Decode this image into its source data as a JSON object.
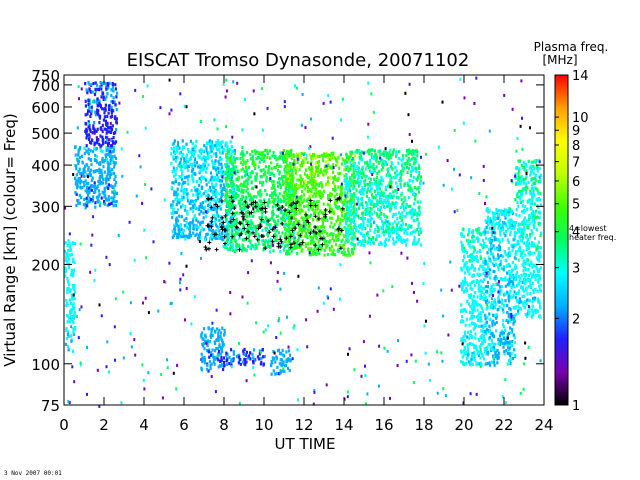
{
  "chart_data": {
    "type": "scatter",
    "title": "EISCAT Tromso Dynasonde,  20071102",
    "xlabel": "UT TIME",
    "ylabel": "Virtual Range [km]   (colour= Freq)",
    "xlim": [
      0,
      24
    ],
    "ylim": [
      75,
      750
    ],
    "y_scale": "log",
    "x_ticks": [
      0,
      2,
      4,
      6,
      8,
      10,
      12,
      14,
      16,
      18,
      20,
      22,
      24
    ],
    "y_ticks": [
      75,
      100,
      200,
      300,
      400,
      500,
      600,
      700,
      750
    ],
    "y_tick_labels": [
      "75",
      "100",
      "200",
      "300",
      "400",
      "500",
      "600",
      "700",
      "750"
    ],
    "grid": false,
    "colorbar": {
      "title": "Plasma freq.",
      "unit": "[MHz]",
      "range": [
        1,
        14
      ],
      "scale": "log",
      "ticks": [
        1,
        2,
        3,
        4,
        5,
        6,
        7,
        8,
        9,
        10,
        14
      ],
      "colors": [
        "#000000",
        "#7a00b0",
        "#2020ff",
        "#00b0ff",
        "#00ffff",
        "#00ff60",
        "#40ff00",
        "#c0ff00",
        "#ffff00",
        "#ffa000",
        "#ff0000"
      ],
      "annotation": "4=lowest heater freq."
    },
    "echo_regions": [
      {
        "t": [
          0.0,
          0.5
        ],
        "h": [
          110,
          240
        ],
        "f": [
          2.4,
          3.0
        ]
      },
      {
        "t": [
          0.5,
          2.6
        ],
        "h": [
          300,
          460
        ],
        "f": [
          1.8,
          2.6
        ]
      },
      {
        "t": [
          1.0,
          2.6
        ],
        "h": [
          460,
          720
        ],
        "f": [
          1.4,
          2.2
        ]
      },
      {
        "t": [
          5.3,
          8.5
        ],
        "h": [
          240,
          480
        ],
        "f": [
          2.0,
          3.0
        ]
      },
      {
        "t": [
          8.0,
          11.5
        ],
        "h": [
          220,
          450
        ],
        "f": [
          3.0,
          4.6
        ]
      },
      {
        "t": [
          11.0,
          14.5
        ],
        "h": [
          215,
          440
        ],
        "f": [
          3.6,
          6.0
        ]
      },
      {
        "t": [
          14.0,
          17.8
        ],
        "h": [
          230,
          450
        ],
        "f": [
          2.6,
          3.8
        ]
      },
      {
        "t": [
          6.8,
          8.0
        ],
        "h": [
          96,
          130
        ],
        "f": [
          1.8,
          2.4
        ]
      },
      {
        "t": [
          8.0,
          10.0
        ],
        "h": [
          100,
          112
        ],
        "f": [
          1.6,
          2.2
        ]
      },
      {
        "t": [
          10.3,
          11.3
        ],
        "h": [
          94,
          112
        ],
        "f": [
          1.9,
          2.5
        ]
      },
      {
        "t": [
          19.8,
          21.0
        ],
        "h": [
          100,
          260
        ],
        "f": [
          2.4,
          3.4
        ]
      },
      {
        "t": [
          21.0,
          22.5
        ],
        "h": [
          100,
          300
        ],
        "f": [
          2.0,
          3.1
        ]
      },
      {
        "t": [
          22.5,
          23.8
        ],
        "h": [
          140,
          420
        ],
        "f": [
          2.4,
          3.6
        ]
      }
    ],
    "heater_marks_plus": {
      "t": [
        7.0,
        14.0
      ],
      "h": [
        220,
        320
      ]
    }
  },
  "footer": {
    "timestamp": "3 Nov 2007 00:01"
  }
}
